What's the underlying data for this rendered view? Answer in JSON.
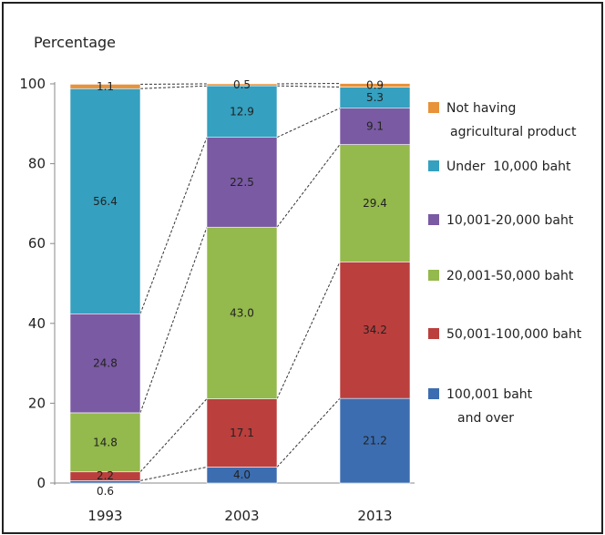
{
  "chart_data": {
    "type": "bar",
    "stacked": true,
    "ylabel": "Percentage",
    "ylim": [
      0,
      100
    ],
    "yticks": [
      0,
      20,
      40,
      60,
      80,
      100
    ],
    "categories": [
      "1993",
      "2003",
      "2013"
    ],
    "series": [
      {
        "name": "100,001 baht and over",
        "legend_lines": [
          "100,001 baht",
          "and over"
        ],
        "color": "#3c6db0",
        "values": [
          0.6,
          4.0,
          21.2
        ],
        "labels": [
          "0.6",
          "4.0",
          "21.2"
        ]
      },
      {
        "name": "50,001-100,000 baht",
        "legend_lines": [
          "50,001-100,000 baht"
        ],
        "color": "#bb3f3d",
        "values": [
          2.2,
          17.1,
          34.2
        ],
        "labels": [
          "2.2",
          "17.1",
          "34.2"
        ]
      },
      {
        "name": "20,001-50,000 baht",
        "legend_lines": [
          "20,001-50,000 baht"
        ],
        "color": "#94b94c",
        "values": [
          14.8,
          43.0,
          29.4
        ],
        "labels": [
          "14.8",
          "43.0",
          "29.4"
        ]
      },
      {
        "name": "10,001-20,000 baht",
        "legend_lines": [
          "10,001-20,000 baht"
        ],
        "color": "#7a5aa3",
        "values": [
          24.8,
          22.5,
          9.1
        ],
        "labels": [
          "24.8",
          "22.5",
          "9.1"
        ]
      },
      {
        "name": "Under 10,000 baht",
        "legend_lines": [
          "Under  10,000 baht"
        ],
        "color": "#35a0bf",
        "values": [
          56.4,
          12.9,
          5.3
        ],
        "labels": [
          "56.4",
          "12.9",
          "5.3"
        ]
      },
      {
        "name": "Not having agricultural product",
        "legend_lines": [
          "Not having",
          "agricultural product"
        ],
        "color": "#e8923a",
        "values": [
          1.1,
          0.5,
          0.9
        ],
        "labels": [
          "1.1",
          "0.5",
          "0.9"
        ]
      }
    ],
    "legend_position": "right",
    "grid": false,
    "connector_lines": "dashed"
  }
}
